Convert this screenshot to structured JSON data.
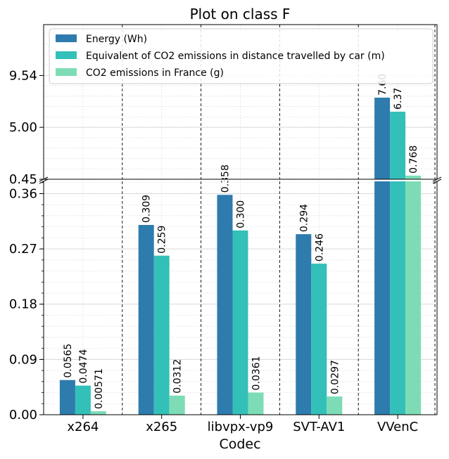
{
  "chart_data": {
    "type": "bar",
    "title": "Plot on class F",
    "xlabel": "Codec",
    "ylabel": "",
    "categories": [
      "x264",
      "x265",
      "libvpx-vp9",
      "SVT-AV1",
      "VVenC"
    ],
    "series": [
      {
        "name": "Energy (Wh)",
        "color": "#2e7bad",
        "values": [
          0.0565,
          0.309,
          0.358,
          0.294,
          7.6
        ],
        "labels": [
          "0.0565",
          "0.309",
          "0.358",
          "0.294",
          "7.60"
        ]
      },
      {
        "name": "Equivalent of CO2 emissions in distance travelled by car (m)",
        "color": "#33c0b8",
        "values": [
          0.0474,
          0.259,
          0.3,
          0.246,
          6.37
        ],
        "labels": [
          "0.0474",
          "0.259",
          "0.300",
          "0.246",
          "6.37"
        ]
      },
      {
        "name": "CO2 emissions in France (g)",
        "color": "#7ddcb6",
        "values": [
          0.00571,
          0.0312,
          0.0361,
          0.0297,
          0.768
        ],
        "labels": [
          "0.00571",
          "0.0312",
          "0.0361",
          "0.0297",
          "0.768"
        ]
      }
    ],
    "axis_break": true,
    "lower_axis": {
      "ylim": [
        0,
        0.38
      ],
      "ticks": [
        0.0,
        0.09,
        0.18,
        0.27,
        0.36
      ],
      "tick_labels": [
        "0.00",
        "0.09",
        "0.18",
        "0.27",
        "0.36"
      ]
    },
    "upper_axis": {
      "ylim": [
        0.45,
        14.0
      ],
      "ticks": [
        0.45,
        5.0,
        9.54
      ],
      "tick_labels": [
        "0.45",
        "5.00",
        "9.54"
      ]
    },
    "grid": true,
    "legend_position": "top"
  }
}
